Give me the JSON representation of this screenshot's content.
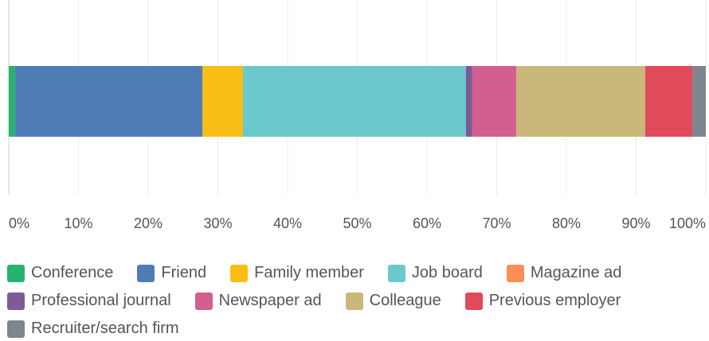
{
  "chart_data": {
    "type": "bar",
    "orientation": "horizontal",
    "stacked": true,
    "categories": [
      null
    ],
    "series": [
      {
        "name": "Conference",
        "color": "#27b36f",
        "values": [
          0.9
        ]
      },
      {
        "name": "Friend",
        "color": "#507cb6",
        "values": [
          26.9
        ]
      },
      {
        "name": "Family member",
        "color": "#f9be15",
        "values": [
          5.8
        ]
      },
      {
        "name": "Job board",
        "color": "#6bc8cd",
        "values": [
          32.0
        ]
      },
      {
        "name": "Magazine ad",
        "color": "#f78f56",
        "values": [
          0
        ]
      },
      {
        "name": "Professional journal",
        "color": "#7f5a95",
        "values": [
          0.9
        ]
      },
      {
        "name": "Newspaper ad",
        "color": "#d25f90",
        "values": [
          6.3
        ]
      },
      {
        "name": "Colleague",
        "color": "#c9b87a",
        "values": [
          18.5
        ]
      },
      {
        "name": "Previous employer",
        "color": "#e04b5c",
        "values": [
          6.8
        ]
      },
      {
        "name": "Recruiter/search firm",
        "color": "#7d868c",
        "values": [
          1.9
        ]
      }
    ],
    "xlim": [
      0,
      100
    ],
    "xticks": [
      {
        "value": 0,
        "label": "0%"
      },
      {
        "value": 10,
        "label": "10%"
      },
      {
        "value": 20,
        "label": "20%"
      },
      {
        "value": 30,
        "label": "30%"
      },
      {
        "value": 40,
        "label": "40%"
      },
      {
        "value": 50,
        "label": "50%"
      },
      {
        "value": 60,
        "label": "60%"
      },
      {
        "value": 70,
        "label": "70%"
      },
      {
        "value": 80,
        "label": "80%"
      },
      {
        "value": 90,
        "label": "90%"
      },
      {
        "value": 100,
        "label": "100%"
      }
    ],
    "grid": true,
    "legend": "bottom"
  }
}
